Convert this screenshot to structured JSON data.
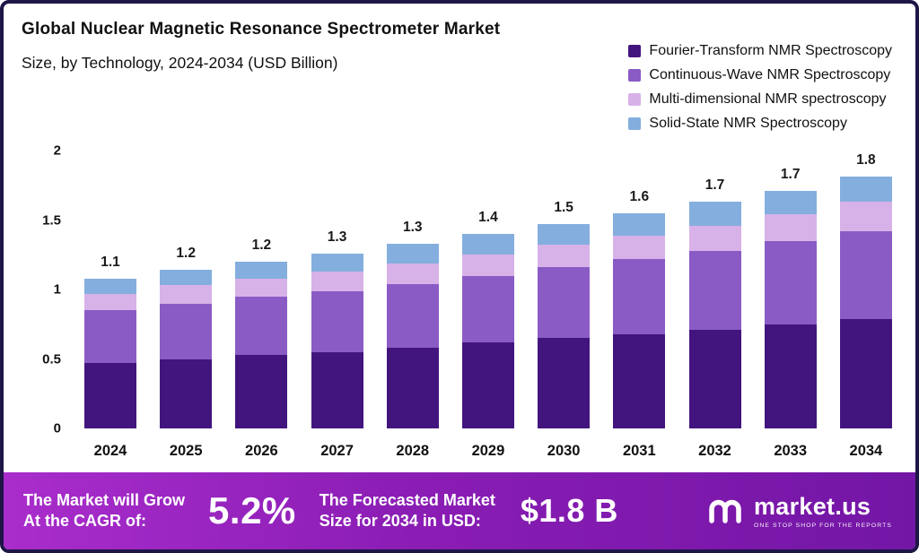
{
  "header": {
    "title": "Global Nuclear Magnetic Resonance Spectrometer Market",
    "subtitle": "Size, by Technology, 2024-2034 (USD Billion)"
  },
  "chart_data": {
    "type": "bar",
    "stacked": true,
    "title": "Global Nuclear Magnetic Resonance Spectrometer Market Size, by Technology, 2024-2034 (USD Billion)",
    "unit": "USD Billion",
    "grid": false,
    "legend_position": "top-right",
    "ylim": [
      0,
      2
    ],
    "y_ticks": [
      0,
      0.5,
      1,
      1.5,
      2
    ],
    "y_tick_labels": [
      "0",
      "0.5",
      "1",
      "1.5",
      "2"
    ],
    "categories": [
      "2024",
      "2025",
      "2026",
      "2027",
      "2028",
      "2029",
      "2030",
      "2031",
      "2032",
      "2033",
      "2034"
    ],
    "series": [
      {
        "name": "Fourier-Transform NMR Spectroscopy",
        "color": "#41157d",
        "values": [
          0.47,
          0.5,
          0.53,
          0.55,
          0.58,
          0.62,
          0.65,
          0.68,
          0.71,
          0.75,
          0.79
        ]
      },
      {
        "name": "Continuous-Wave NMR Spectroscopy",
        "color": "#8a5bc5",
        "values": [
          0.38,
          0.4,
          0.42,
          0.44,
          0.46,
          0.48,
          0.51,
          0.54,
          0.57,
          0.6,
          0.63
        ]
      },
      {
        "name": "Multi-dimensional NMR spectroscopy",
        "color": "#d7b2e8",
        "values": [
          0.12,
          0.13,
          0.13,
          0.14,
          0.15,
          0.15,
          0.16,
          0.17,
          0.18,
          0.19,
          0.21
        ]
      },
      {
        "name": "Solid-State NMR Spectroscopy",
        "color": "#84aedd",
        "values": [
          0.11,
          0.11,
          0.12,
          0.13,
          0.14,
          0.15,
          0.15,
          0.16,
          0.17,
          0.17,
          0.18
        ]
      }
    ],
    "totals_labels": [
      "1.1",
      "1.2",
      "1.2",
      "1.3",
      "1.3",
      "1.4",
      "1.5",
      "1.6",
      "1.7",
      "1.7",
      "1.8"
    ]
  },
  "banner": {
    "grow_line1": "The Market will Grow",
    "grow_line2": "At the CAGR of:",
    "cagr": "5.2%",
    "forecast_line1": "The Forecasted Market",
    "forecast_line2": "Size for 2034 in USD:",
    "forecast_value": "$1.8 B",
    "logo": {
      "name": "market.us",
      "tagline": "ONE STOP SHOP FOR THE REPORTS"
    }
  },
  "colors": {
    "frame_border": "#1d1646",
    "banner_gradient_start": "#a92dcb",
    "banner_gradient_end": "#7316a6",
    "text": "#111111"
  }
}
